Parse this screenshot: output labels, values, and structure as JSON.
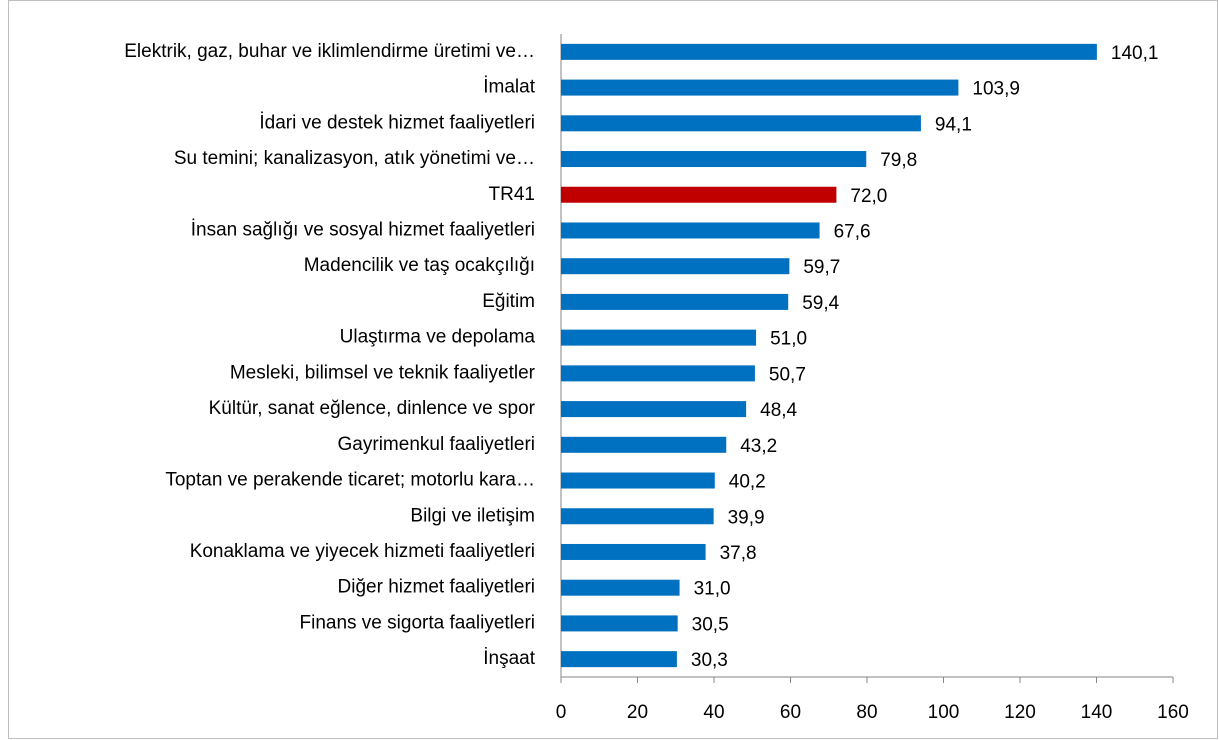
{
  "chart_data": {
    "type": "bar",
    "orientation": "horizontal",
    "categories": [
      "Elektrik, gaz, buhar ve iklimlendirme üretimi ve…",
      "İmalat",
      "İdari ve destek hizmet faaliyetleri",
      "Su temini; kanalizasyon, atık yönetimi ve…",
      "TR41",
      "İnsan sağlığı ve sosyal hizmet faaliyetleri",
      "Madencilik ve taş ocakçılığı",
      "Eğitim",
      "Ulaştırma ve depolama",
      "Mesleki, bilimsel ve teknik faaliyetler",
      "Kültür, sanat eğlence, dinlence ve spor",
      "Gayrimenkul faaliyetleri",
      "Toptan ve perakende ticaret; motorlu kara…",
      "Bilgi ve iletişim",
      "Konaklama ve yiyecek hizmeti faaliyetleri",
      "Diğer hizmet faaliyetleri",
      "Finans ve sigorta faaliyetleri",
      "İnşaat"
    ],
    "values": [
      140.1,
      103.9,
      94.1,
      79.8,
      72.0,
      67.6,
      59.7,
      59.4,
      51.0,
      50.7,
      48.4,
      43.2,
      40.2,
      39.9,
      37.8,
      31.0,
      30.5,
      30.3
    ],
    "value_labels": [
      "140,1",
      "103,9",
      "94,1",
      "79,8",
      "72,0",
      "67,6",
      "59,7",
      "59,4",
      "51,0",
      "50,7",
      "48,4",
      "43,2",
      "40,2",
      "39,9",
      "37,8",
      "31,0",
      "30,5",
      "30,3"
    ],
    "colors": [
      "#0070c0",
      "#0070c0",
      "#0070c0",
      "#0070c0",
      "#c00000",
      "#0070c0",
      "#0070c0",
      "#0070c0",
      "#0070c0",
      "#0070c0",
      "#0070c0",
      "#0070c0",
      "#0070c0",
      "#0070c0",
      "#0070c0",
      "#0070c0",
      "#0070c0",
      "#0070c0"
    ],
    "xlim": [
      0,
      160
    ],
    "xticks": [
      0,
      20,
      40,
      60,
      80,
      100,
      120,
      140,
      160
    ],
    "grid": false
  }
}
